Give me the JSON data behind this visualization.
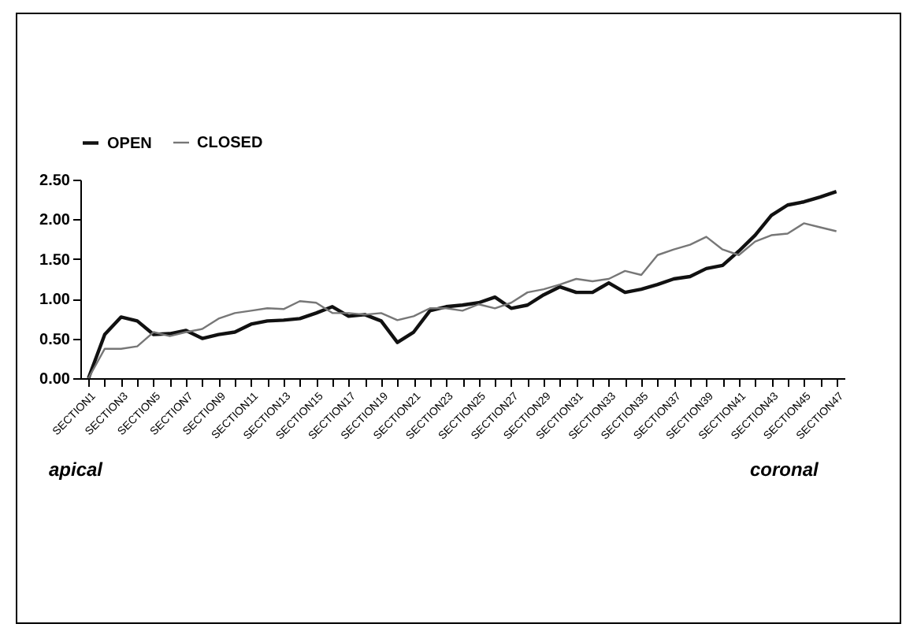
{
  "chart_data": {
    "type": "line",
    "categories": [
      "SECTION1",
      null,
      "SECTION3",
      null,
      "SECTION5",
      null,
      "SECTION7",
      null,
      "SECTION9",
      null,
      "SECTION11",
      null,
      "SECTION13",
      null,
      "SECTION15",
      null,
      "SECTION17",
      null,
      "SECTION19",
      null,
      "SECTION21",
      null,
      "SECTION23",
      null,
      "SECTION25",
      null,
      "SECTION27",
      null,
      "SECTION29",
      null,
      "SECTION31",
      null,
      "SECTION33",
      null,
      "SECTION35",
      null,
      "SECTION37",
      null,
      "SECTION39",
      null,
      "SECTION41",
      null,
      "SECTION43",
      null,
      "SECTION45",
      null,
      "SECTION47"
    ],
    "series": [
      {
        "name": "OPEN",
        "color": "#111111",
        "values": [
          0,
          0.55,
          0.77,
          0.72,
          0.55,
          0.56,
          0.6,
          0.5,
          0.55,
          0.58,
          0.68,
          0.72,
          0.73,
          0.75,
          0.82,
          0.9,
          0.78,
          0.8,
          0.72,
          0.45,
          0.58,
          0.85,
          0.9,
          0.92,
          0.95,
          1.02,
          0.88,
          0.92,
          1.05,
          1.15,
          1.08,
          1.08,
          1.2,
          1.08,
          1.12,
          1.18,
          1.25,
          1.28,
          1.38,
          1.42,
          1.6,
          1.8,
          2.05,
          2.18,
          2.22,
          2.28,
          2.35
        ]
      },
      {
        "name": "CLOSED",
        "color": "#777777",
        "values": [
          0,
          0.37,
          0.37,
          0.4,
          0.58,
          0.53,
          0.58,
          0.62,
          0.75,
          0.82,
          0.85,
          0.88,
          0.87,
          0.97,
          0.95,
          0.82,
          0.82,
          0.8,
          0.82,
          0.73,
          0.78,
          0.88,
          0.88,
          0.85,
          0.93,
          0.88,
          0.95,
          1.08,
          1.12,
          1.18,
          1.25,
          1.22,
          1.25,
          1.35,
          1.3,
          1.55,
          1.62,
          1.68,
          1.78,
          1.62,
          1.55,
          1.72,
          1.8,
          1.82,
          1.95,
          1.9,
          1.85
        ]
      }
    ],
    "ylim": [
      0,
      2.5
    ],
    "yticks": [
      {
        "value": 0,
        "label": "0.00"
      },
      {
        "value": 0.5,
        "label": "0.50"
      },
      {
        "value": 1,
        "label": "1.00"
      },
      {
        "value": 1.5,
        "label": "1.50"
      },
      {
        "value": 2,
        "label": "2.00"
      },
      {
        "value": 2.5,
        "label": "2.50"
      }
    ],
    "grid": false,
    "legend": "top",
    "marker": "none",
    "line_style": "solid",
    "annotations": [
      "apical",
      "coronal"
    ]
  }
}
